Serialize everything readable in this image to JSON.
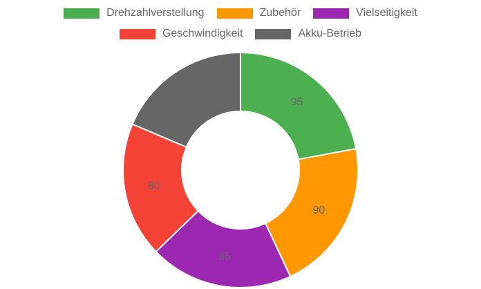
{
  "chart_data": {
    "type": "pie",
    "variant": "doughnut",
    "categories": [
      "Drehzahlverstellung",
      "Zubehör",
      "Vielseitigkeit",
      "Geschwindigkeit",
      "Akku-Betrieb"
    ],
    "values": [
      95,
      90,
      85,
      80,
      80
    ],
    "value_labels": [
      "95",
      "90",
      "85",
      "80",
      ""
    ],
    "colors": [
      "#4caf50",
      "#ff9800",
      "#9c27b0",
      "#f44336",
      "#666666"
    ],
    "legend_position": "top",
    "title": "",
    "xlabel": "",
    "ylabel": ""
  }
}
